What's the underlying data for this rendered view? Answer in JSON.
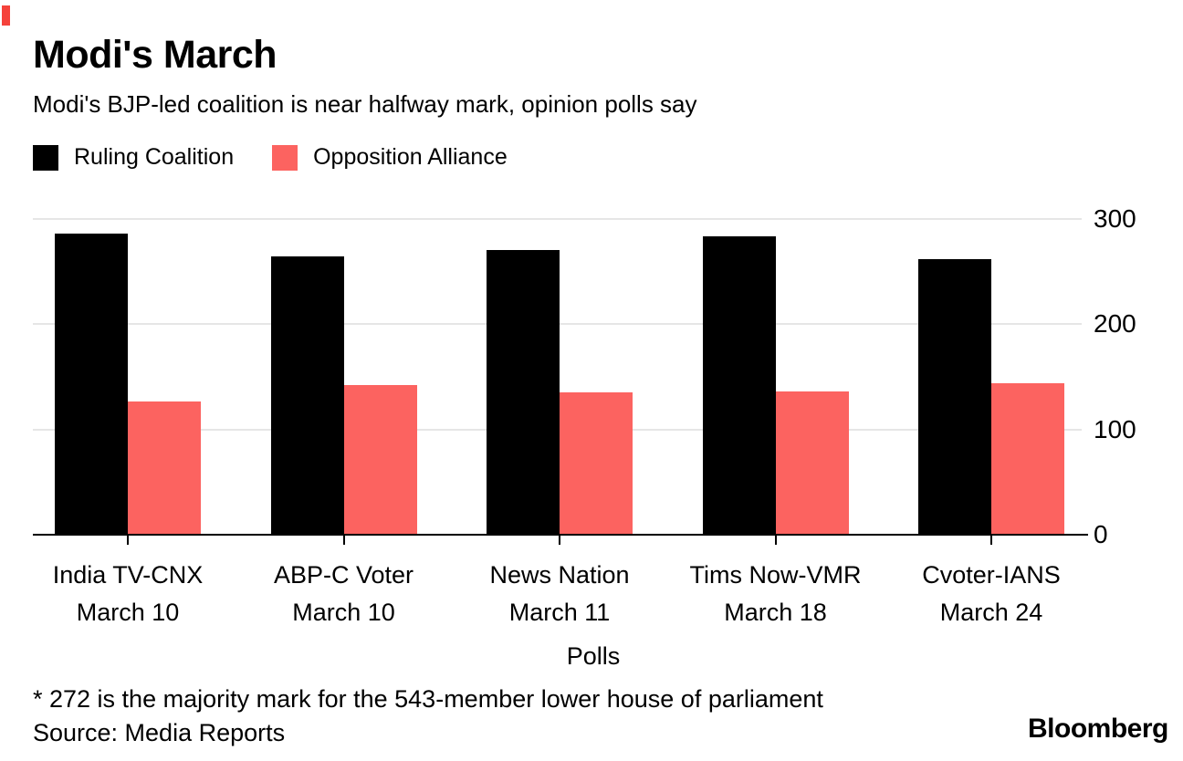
{
  "header": {
    "title": "Modi's March",
    "subtitle": "Modi's BJP-led coalition is near halfway mark, opinion polls say"
  },
  "accent": {
    "corner_tick_color": "#f5423b"
  },
  "legend": [
    {
      "label": "Ruling Coalition",
      "color": "#000000"
    },
    {
      "label": "Opposition Alliance",
      "color": "#fc6360"
    }
  ],
  "chart_data": {
    "type": "bar",
    "title": "Modi's March",
    "subtitle": "Modi's BJP-led coalition is near halfway mark, opinion polls say",
    "categories": [
      {
        "line1": "India TV-CNX",
        "line2": "March 10"
      },
      {
        "line1": "ABP-C Voter",
        "line2": "March 10"
      },
      {
        "line1": "News Nation",
        "line2": "March 11"
      },
      {
        "line1": "Tims Now-VMR",
        "line2": "March 18"
      },
      {
        "line1": "Cvoter-IANS",
        "line2": "March 24"
      }
    ],
    "series": [
      {
        "name": "Ruling Coalition",
        "color": "#000000",
        "values": [
          285,
          264,
          270,
          283,
          261
        ]
      },
      {
        "name": "Opposition Alliance",
        "color": "#fc6360",
        "values": [
          126,
          141,
          134,
          135,
          143
        ]
      }
    ],
    "xlabel": "Polls",
    "ylabel": "",
    "ylim": [
      0,
      300
    ],
    "yticks": [
      0,
      100,
      200,
      300
    ],
    "ytick_side": "right",
    "grid": "horizontal",
    "gridline_color": "#e6e6e6",
    "legend_position": "top-left"
  },
  "footer": {
    "note": "* 272 is the majority mark for the 543-member lower house of parliament",
    "source": "Source: Media Reports",
    "brand": "Bloomberg"
  }
}
